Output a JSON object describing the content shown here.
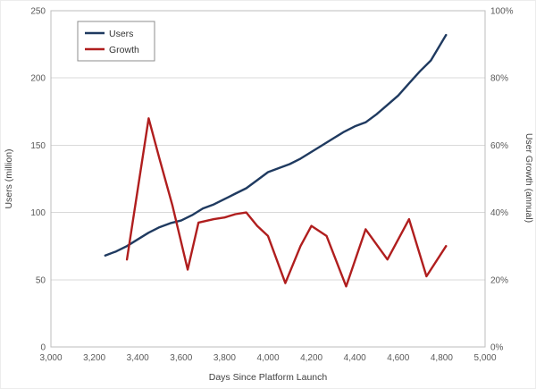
{
  "chart_data": {
    "type": "line",
    "title": "",
    "xlabel": "Days Since Platform Launch",
    "ylabel_left": "Users (million)",
    "ylabel_right": "User Growth (annual)",
    "xlim": [
      3000,
      5000
    ],
    "ylim_left": [
      0,
      250
    ],
    "ylim_right": [
      0,
      100
    ],
    "x_ticks": [
      "3,000",
      "3,200",
      "3,400",
      "3,600",
      "3,800",
      "4,000",
      "4,200",
      "4,400",
      "4,600",
      "4,800",
      "5,000"
    ],
    "y_ticks_left": [
      "0",
      "50",
      "100",
      "150",
      "200",
      "250"
    ],
    "y_ticks_right": [
      "0%",
      "20%",
      "40%",
      "60%",
      "80%",
      "100%"
    ],
    "grid": "horizontal",
    "legend_position": "top-left",
    "series": [
      {
        "name": "Users",
        "axis": "left",
        "color": "#1f3a60",
        "x": [
          3250,
          3300,
          3350,
          3400,
          3450,
          3500,
          3550,
          3600,
          3650,
          3700,
          3750,
          3800,
          3850,
          3900,
          3950,
          4000,
          4050,
          4100,
          4150,
          4200,
          4250,
          4300,
          4350,
          4400,
          4450,
          4500,
          4550,
          4600,
          4650,
          4700,
          4750,
          4820
        ],
        "y": [
          68,
          71,
          75,
          80,
          85,
          89,
          92,
          94,
          98,
          103,
          106,
          110,
          114,
          118,
          124,
          130,
          133,
          136,
          140,
          145,
          150,
          155,
          160,
          164,
          167,
          173,
          180,
          187,
          196,
          205,
          213,
          232
        ]
      },
      {
        "name": "Growth",
        "axis": "right",
        "color": "#b01e1e",
        "x": [
          3350,
          3450,
          3500,
          3560,
          3630,
          3680,
          3750,
          3800,
          3850,
          3900,
          3950,
          4000,
          4080,
          4150,
          4200,
          4270,
          4360,
          4450,
          4550,
          4650,
          4730,
          4820
        ],
        "y": [
          26,
          68,
          56,
          42,
          23,
          37,
          38,
          38.5,
          39.5,
          40,
          36,
          33,
          19,
          30,
          36,
          33,
          18,
          35,
          26,
          38,
          21,
          30
        ]
      }
    ]
  }
}
